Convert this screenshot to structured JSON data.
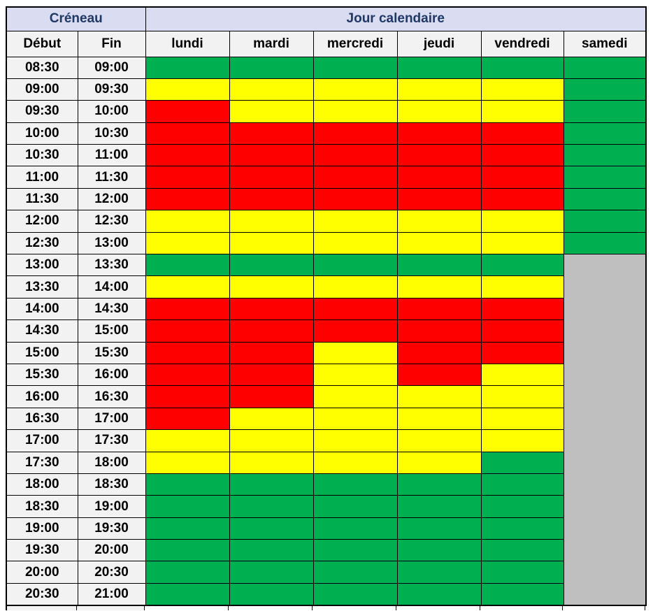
{
  "colors": {
    "green": "#00B050",
    "yellow": "#FFFF00",
    "red": "#FF0000",
    "gray": "#BFBFBF",
    "header_bg": "#DADCF1",
    "header_text": "#1F3864",
    "cell_bg": "#F2F2F2",
    "border": "#000000"
  },
  "table": {
    "group_headers": {
      "creneau": "Créneau",
      "jour_calendaire": "Jour calendaire"
    },
    "column_headers": {
      "debut": "Début",
      "fin": "Fin",
      "days": [
        "lundi",
        "mardi",
        "mercredi",
        "jeudi",
        "vendredi",
        "samedi"
      ]
    }
  },
  "chart_data": {
    "type": "heatmap",
    "columns": [
      "lundi",
      "mardi",
      "mercredi",
      "jeudi",
      "vendredi",
      "samedi"
    ],
    "rows": [
      {
        "debut": "08:30",
        "fin": "09:00",
        "status": [
          "green",
          "green",
          "green",
          "green",
          "green",
          "green"
        ]
      },
      {
        "debut": "09:00",
        "fin": "09:30",
        "status": [
          "yellow",
          "yellow",
          "yellow",
          "yellow",
          "yellow",
          "green"
        ]
      },
      {
        "debut": "09:30",
        "fin": "10:00",
        "status": [
          "red",
          "yellow",
          "yellow",
          "yellow",
          "yellow",
          "green"
        ]
      },
      {
        "debut": "10:00",
        "fin": "10:30",
        "status": [
          "red",
          "red",
          "red",
          "red",
          "red",
          "green"
        ]
      },
      {
        "debut": "10:30",
        "fin": "11:00",
        "status": [
          "red",
          "red",
          "red",
          "red",
          "red",
          "green"
        ]
      },
      {
        "debut": "11:00",
        "fin": "11:30",
        "status": [
          "red",
          "red",
          "red",
          "red",
          "red",
          "green"
        ]
      },
      {
        "debut": "11:30",
        "fin": "12:00",
        "status": [
          "red",
          "red",
          "red",
          "red",
          "red",
          "green"
        ]
      },
      {
        "debut": "12:00",
        "fin": "12:30",
        "status": [
          "yellow",
          "yellow",
          "yellow",
          "yellow",
          "yellow",
          "green"
        ]
      },
      {
        "debut": "12:30",
        "fin": "13:00",
        "status": [
          "yellow",
          "yellow",
          "yellow",
          "yellow",
          "yellow",
          "green"
        ]
      },
      {
        "debut": "13:00",
        "fin": "13:30",
        "status": [
          "green",
          "green",
          "green",
          "green",
          "green",
          "gray"
        ]
      },
      {
        "debut": "13:30",
        "fin": "14:00",
        "status": [
          "yellow",
          "yellow",
          "yellow",
          "yellow",
          "yellow",
          "gray"
        ]
      },
      {
        "debut": "14:00",
        "fin": "14:30",
        "status": [
          "red",
          "red",
          "red",
          "red",
          "red",
          "gray"
        ]
      },
      {
        "debut": "14:30",
        "fin": "15:00",
        "status": [
          "red",
          "red",
          "red",
          "red",
          "red",
          "gray"
        ]
      },
      {
        "debut": "15:00",
        "fin": "15:30",
        "status": [
          "red",
          "red",
          "yellow",
          "red",
          "red",
          "gray"
        ]
      },
      {
        "debut": "15:30",
        "fin": "16:00",
        "status": [
          "red",
          "red",
          "yellow",
          "red",
          "yellow",
          "gray"
        ]
      },
      {
        "debut": "16:00",
        "fin": "16:30",
        "status": [
          "red",
          "red",
          "yellow",
          "yellow",
          "yellow",
          "gray"
        ]
      },
      {
        "debut": "16:30",
        "fin": "17:00",
        "status": [
          "red",
          "yellow",
          "yellow",
          "yellow",
          "yellow",
          "gray"
        ]
      },
      {
        "debut": "17:00",
        "fin": "17:30",
        "status": [
          "yellow",
          "yellow",
          "yellow",
          "yellow",
          "yellow",
          "gray"
        ]
      },
      {
        "debut": "17:30",
        "fin": "18:00",
        "status": [
          "yellow",
          "yellow",
          "yellow",
          "yellow",
          "green",
          "gray"
        ]
      },
      {
        "debut": "18:00",
        "fin": "18:30",
        "status": [
          "green",
          "green",
          "green",
          "green",
          "green",
          "gray"
        ]
      },
      {
        "debut": "18:30",
        "fin": "19:00",
        "status": [
          "green",
          "green",
          "green",
          "green",
          "green",
          "gray"
        ]
      },
      {
        "debut": "19:00",
        "fin": "19:30",
        "status": [
          "green",
          "green",
          "green",
          "green",
          "green",
          "gray"
        ]
      },
      {
        "debut": "19:30",
        "fin": "20:00",
        "status": [
          "green",
          "green",
          "green",
          "green",
          "green",
          "gray"
        ]
      },
      {
        "debut": "20:00",
        "fin": "20:30",
        "status": [
          "green",
          "green",
          "green",
          "green",
          "green",
          "gray"
        ]
      },
      {
        "debut": "20:30",
        "fin": "21:00",
        "status": [
          "green",
          "green",
          "green",
          "green",
          "green",
          "gray"
        ]
      }
    ],
    "merged_samedi_block": {
      "start_debut": "13:00",
      "end_fin": "21:00",
      "status": "gray",
      "rowspan": 16
    }
  }
}
